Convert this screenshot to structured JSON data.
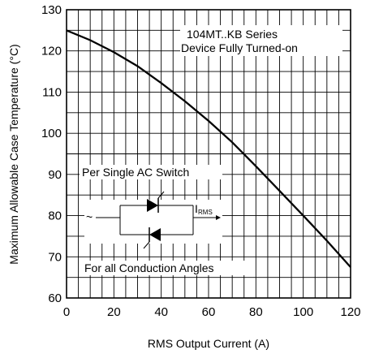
{
  "chart_data": {
    "type": "line",
    "title": "",
    "xlabel": "RMS Output Current (A)",
    "ylabel": "Maximum Allowable Case Temperature (°C)",
    "xlim": [
      0,
      120
    ],
    "ylim": [
      60,
      130
    ],
    "x_ticks": [
      0,
      20,
      40,
      60,
      80,
      100,
      120
    ],
    "y_ticks": [
      60,
      70,
      80,
      90,
      100,
      110,
      120,
      130
    ],
    "grid": true,
    "series": [
      {
        "name": "",
        "x": [
          0,
          10,
          20,
          30,
          40,
          50,
          60,
          70,
          80,
          90,
          100,
          110,
          120
        ],
        "y": [
          125,
          122.6,
          119.7,
          116.3,
          112.2,
          107.8,
          103.0,
          97.8,
          92.0,
          86.0,
          80.0,
          73.9,
          67.5
        ]
      }
    ],
    "annotations": {
      "series_line1": "104MT..KB Series",
      "series_line2": "Device Fully Turned-on",
      "switch": "Per Single AC Switch",
      "angles": "For all Conduction Angles",
      "i_symbol": "I",
      "i_sub": "RMS",
      "ac_symbol": "~"
    }
  }
}
